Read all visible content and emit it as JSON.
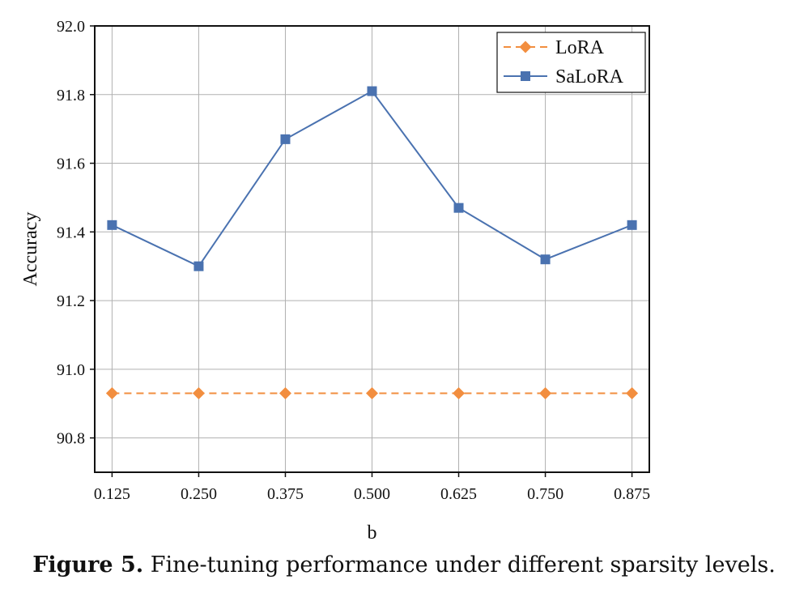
{
  "chart_data": {
    "type": "line",
    "categories": [
      "0.125",
      "0.250",
      "0.375",
      "0.500",
      "0.625",
      "0.750",
      "0.875"
    ],
    "x": [
      0.125,
      0.25,
      0.375,
      0.5,
      0.625,
      0.75,
      0.875
    ],
    "series": [
      {
        "name": "LoRA",
        "values": [
          90.93,
          90.93,
          90.93,
          90.93,
          90.93,
          90.93,
          90.93
        ],
        "color": "#f28e3f",
        "marker": "diamond",
        "line_style": "dashed"
      },
      {
        "name": "SaLoRA",
        "values": [
          91.42,
          91.3,
          91.67,
          91.81,
          91.47,
          91.32,
          91.42
        ],
        "color": "#4a72b0",
        "marker": "square",
        "line_style": "solid"
      }
    ],
    "xlabel": "b",
    "ylabel": "Accuracy",
    "ylim": [
      90.7,
      92.0
    ],
    "yticks": [
      "90.8",
      "91.0",
      "91.2",
      "91.4",
      "91.6",
      "91.8",
      "92.0"
    ],
    "grid": true,
    "legend_position": "top-right"
  },
  "caption": {
    "label": "Figure 5.",
    "text": " Fine-tuning performance under different sparsity levels."
  }
}
